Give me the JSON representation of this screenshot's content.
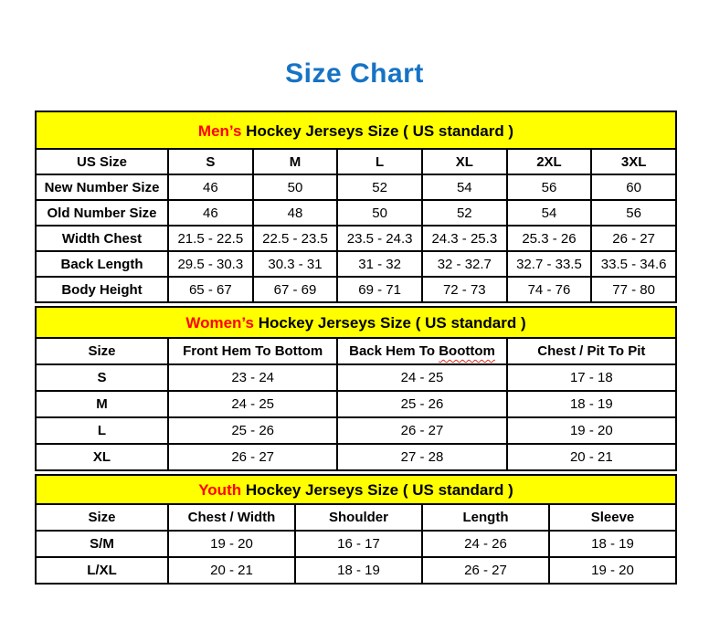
{
  "page": {
    "title": "Size Chart"
  },
  "colors": {
    "title_blue": "#1673C5",
    "band_yellow": "#FFFF00",
    "highlight_red": "#FF0000",
    "squiggle_red": "#E02B20"
  },
  "tables": [
    {
      "name": "mens",
      "title": {
        "highlight": "Men’s",
        "rest": " Hockey Jerseys Size ( US standard )"
      },
      "columns": [
        "US Size",
        "S",
        "M",
        "L",
        "XL",
        "2XL",
        "3XL"
      ],
      "rows": [
        [
          "New Number Size",
          "46",
          "50",
          "52",
          "54",
          "56",
          "60"
        ],
        [
          "Old Number Size",
          "46",
          "48",
          "50",
          "52",
          "54",
          "56"
        ],
        [
          "Width Chest",
          "21.5 - 22.5",
          "22.5 - 23.5",
          "23.5 - 24.3",
          "24.3 - 25.3",
          "25.3 - 26",
          "26 - 27"
        ],
        [
          "Back Length",
          "29.5 - 30.3",
          "30.3 - 31",
          "31 - 32",
          "32 - 32.7",
          "32.7 - 33.5",
          "33.5 - 34.6"
        ],
        [
          "Body Height",
          "65 - 67",
          "67 - 69",
          "69 - 71",
          "72 - 73",
          "74 - 76",
          "77 - 80"
        ]
      ]
    },
    {
      "name": "womens",
      "title": {
        "highlight": "Women’s",
        "rest": " Hockey Jerseys Size ( US standard )"
      },
      "columns": [
        "Size",
        "Front Hem To Bottom",
        {
          "text": "Back Hem To Boottom",
          "wavy": "Boottom"
        },
        "Chest / Pit To Pit"
      ],
      "rows": [
        [
          "S",
          "23 - 24",
          "24 - 25",
          "17 - 18"
        ],
        [
          "M",
          "24 - 25",
          "25 - 26",
          "18 - 19"
        ],
        [
          "L",
          "25 - 26",
          "26 - 27",
          "19 - 20"
        ],
        [
          "XL",
          "26 - 27",
          "27 - 28",
          "20 - 21"
        ]
      ]
    },
    {
      "name": "youth",
      "title": {
        "highlight": "Youth",
        "rest": " Hockey Jerseys Size ( US standard )"
      },
      "columns": [
        "Size",
        "Chest / Width",
        "Shoulder",
        "Length",
        "Sleeve"
      ],
      "rows": [
        [
          "S/M",
          "19 - 20",
          "16 - 17",
          "24 - 26",
          "18 - 19"
        ],
        [
          "L/XL",
          "20 - 21",
          "18 - 19",
          "26 - 27",
          "19 - 20"
        ]
      ]
    }
  ]
}
